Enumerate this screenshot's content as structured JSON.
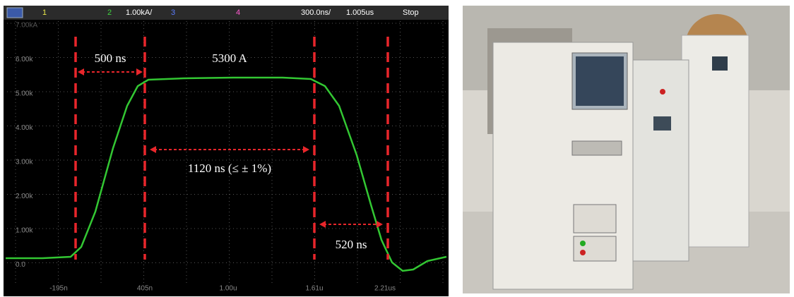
{
  "scope": {
    "header": [
      {
        "text": "1",
        "color": "#e8e84a"
      },
      {
        "text": "2",
        "color": "#3fd43f"
      },
      {
        "text": "1.00kA/",
        "color": "#ffffff"
      },
      {
        "text": "3",
        "color": "#5a7dff"
      },
      {
        "text": "4",
        "color": "#ff5ad0"
      },
      {
        "text": "300.0ns/",
        "color": "#ffffff"
      },
      {
        "text": "1.005us",
        "color": "#ffffff"
      },
      {
        "text": "Stop",
        "color": "#ffffff"
      }
    ],
    "y_labels": [
      "7.00kA",
      "6.00k",
      "5.00k",
      "4.00k",
      "3.00k",
      "2.00k",
      "1.00k",
      "0.0"
    ],
    "x_labels": [
      "-195n",
      "405n",
      "1.00u",
      "1.61u",
      "2.21us"
    ]
  },
  "annotations": {
    "rise": "500 ns",
    "peak": "5300 A",
    "flat": "1120 ns (≤ ± 1%)",
    "fall": "520 ns"
  }
}
